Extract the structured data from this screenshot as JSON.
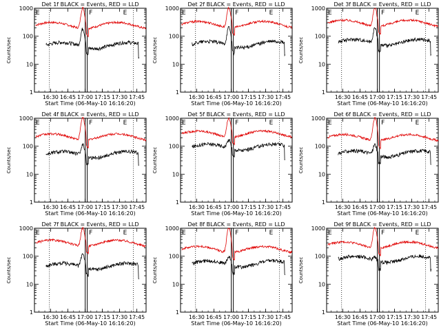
{
  "figure": {
    "background": "#ffffff",
    "event_color": "#000000",
    "lld_color": "#e00000"
  },
  "chart_data": [
    {
      "type": "line",
      "title": "Det 1f BLACK = Events, RED = LLD",
      "xlabel": "Start Time (06-May-10 16:16:20)",
      "ylabel": "Counts/sec",
      "yscale": "log",
      "ylim": [
        1,
        1000
      ],
      "yticks": [
        "1",
        "10",
        "100",
        "1000"
      ],
      "xticks": [
        "16:30",
        "16:45",
        "17:00",
        "17:15",
        "17:30",
        "17:45"
      ],
      "xlim": [
        "16:16",
        "17:53"
      ],
      "markers": [
        "E",
        "F",
        "E"
      ],
      "events_base": 48,
      "events_start": "16:26",
      "events_end": "17:47",
      "lld_base": 250,
      "peak_events": 190,
      "peak_lld": 1100
    },
    {
      "type": "line",
      "title": "Det 2f BLACK = Events, RED = LLD",
      "xlabel": "Start Time (06-May-10 16:16:20)",
      "ylabel": "Counts/sec",
      "yscale": "log",
      "ylim": [
        1,
        1000
      ],
      "yticks": [
        "1",
        "10",
        "100",
        "1000"
      ],
      "xticks": [
        "16:30",
        "16:45",
        "17:00",
        "17:15",
        "17:30",
        "17:45"
      ],
      "xlim": [
        "16:16",
        "17:53"
      ],
      "markers": [
        "E",
        "F",
        "E"
      ],
      "events_base": 52,
      "events_start": "16:26",
      "events_end": "17:47",
      "lld_base": 270,
      "peak_events": 210,
      "peak_lld": 1100
    },
    {
      "type": "line",
      "title": "Det 3f BLACK = Events, RED = LLD",
      "xlabel": "Start Time (06-May-10 16:16:20)",
      "ylabel": "Counts/sec",
      "yscale": "log",
      "ylim": [
        1,
        1000
      ],
      "yticks": [
        "1",
        "10",
        "100",
        "1000"
      ],
      "xticks": [
        "16:30",
        "16:45",
        "17:00",
        "17:15",
        "17:30",
        "17:45"
      ],
      "xlim": [
        "16:16",
        "17:53"
      ],
      "markers": [
        "E",
        "F",
        "E"
      ],
      "events_base": 62,
      "events_start": "16:26",
      "events_end": "17:47",
      "lld_base": 300,
      "peak_events": 200,
      "peak_lld": 1100
    },
    {
      "type": "line",
      "title": "Det 4f BLACK = Events, RED = LLD",
      "xlabel": "Start Time (06-May-10 16:16:20)",
      "ylabel": "Counts/sec",
      "yscale": "log",
      "ylim": [
        1,
        1000
      ],
      "yticks": [
        "1",
        "10",
        "100",
        "1000"
      ],
      "xticks": [
        "16:30",
        "16:45",
        "17:00",
        "17:15",
        "17:30",
        "17:45"
      ],
      "xlim": [
        "16:16",
        "17:53"
      ],
      "markers": [
        "E",
        "F",
        "E"
      ],
      "events_base": 52,
      "events_start": "16:26",
      "events_end": "17:47",
      "lld_base": 220,
      "peak_events": 120,
      "peak_lld": 1100
    },
    {
      "type": "line",
      "title": "Det 5f BLACK = Events, RED = LLD",
      "xlabel": "Start Time (06-May-10 16:16:20)",
      "ylabel": "Counts/sec",
      "yscale": "log",
      "ylim": [
        1,
        1000
      ],
      "yticks": [
        "1",
        "10",
        "100",
        "1000"
      ],
      "xticks": [
        "16:30",
        "16:45",
        "17:00",
        "17:15",
        "17:30",
        "17:45"
      ],
      "xlim": [
        "16:16",
        "17:53"
      ],
      "markers": [
        "E",
        "F",
        "E"
      ],
      "events_base": 95,
      "events_start": "16:26",
      "events_end": "17:47",
      "lld_base": 280,
      "peak_events": 180,
      "peak_lld": 1100
    },
    {
      "type": "line",
      "title": "Det 6f BLACK = Events, RED = LLD",
      "xlabel": "Start Time (06-May-10 16:16:20)",
      "ylabel": "Counts/sec",
      "yscale": "log",
      "ylim": [
        1,
        1000
      ],
      "yticks": [
        "1",
        "10",
        "100",
        "1000"
      ],
      "xticks": [
        "16:30",
        "16:45",
        "17:00",
        "17:15",
        "17:30",
        "17:45"
      ],
      "xlim": [
        "16:16",
        "17:53"
      ],
      "markers": [
        "E",
        "F",
        "E"
      ],
      "events_base": 55,
      "events_start": "16:26",
      "events_end": "17:47",
      "lld_base": 210,
      "peak_events": 120,
      "peak_lld": 1100
    },
    {
      "type": "line",
      "title": "Det 7f BLACK = Events, RED = LLD",
      "xlabel": "Start Time (06-May-10 16:16:20)",
      "ylabel": "Counts/sec",
      "yscale": "log",
      "ylim": [
        1,
        1000
      ],
      "yticks": [
        "1",
        "10",
        "100",
        "1000"
      ],
      "xticks": [
        "16:30",
        "16:45",
        "17:00",
        "17:15",
        "17:30",
        "17:45"
      ],
      "xlim": [
        "16:16",
        "17:53"
      ],
      "markers": [
        "E",
        "F",
        "E"
      ],
      "events_base": 45,
      "events_start": "16:26",
      "events_end": "17:47",
      "lld_base": 300,
      "peak_events": 130,
      "peak_lld": 1100
    },
    {
      "type": "line",
      "title": "Det 8f BLACK = Events, RED = LLD",
      "xlabel": "Start Time (06-May-10 16:16:20)",
      "ylabel": "Counts/sec",
      "yscale": "log",
      "ylim": [
        1,
        1000
      ],
      "yticks": [
        "1",
        "10",
        "100",
        "1000"
      ],
      "xticks": [
        "16:30",
        "16:45",
        "17:00",
        "17:15",
        "17:30",
        "17:45"
      ],
      "xlim": [
        "16:16",
        "17:53"
      ],
      "markers": [
        "E",
        "F",
        "E"
      ],
      "events_base": 55,
      "events_start": "16:26",
      "events_end": "17:47",
      "lld_base": 180,
      "peak_events": 100,
      "peak_lld": 1100
    },
    {
      "type": "line",
      "title": "Det 9f BLACK = Events, RED = LLD",
      "xlabel": "Start Time (06-May-10 16:16:20)",
      "ylabel": "Counts/sec",
      "yscale": "log",
      "ylim": [
        1,
        1000
      ],
      "yticks": [
        "1",
        "10",
        "100",
        "1000"
      ],
      "xticks": [
        "16:30",
        "16:45",
        "17:00",
        "17:15",
        "17:30",
        "17:45"
      ],
      "xlim": [
        "16:16",
        "17:53"
      ],
      "markers": [
        "E",
        "F",
        "E"
      ],
      "events_base": 80,
      "events_start": "16:26",
      "events_end": "17:47",
      "lld_base": 260,
      "peak_events": 100,
      "peak_lld": 1100
    }
  ]
}
